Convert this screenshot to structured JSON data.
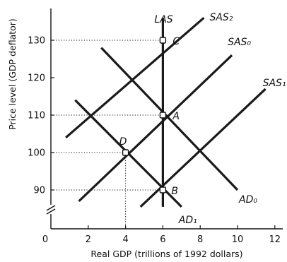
{
  "chart_data": {
    "type": "line",
    "xlabel": "Real GDP (trillions of 1992 dollars)",
    "ylabel": "Price level (GDP deflator)",
    "xlim": [
      0,
      12.5
    ],
    "ylim": [
      85,
      137
    ],
    "x_ticks": [
      0,
      2,
      4,
      6,
      8,
      10,
      12
    ],
    "y_ticks": [
      90,
      100,
      110,
      120,
      130
    ],
    "y_axis_break": true,
    "grid": false,
    "series": [
      {
        "name": "LAS",
        "label": "LAS",
        "type": "vertical",
        "x": 6,
        "y_range": [
          85.5,
          136
        ]
      },
      {
        "name": "SAS2",
        "label": "SAS₂",
        "points": [
          [
            0.8,
            104
          ],
          [
            8.2,
            136
          ]
        ]
      },
      {
        "name": "SAS0",
        "label": "SAS₀",
        "points": [
          [
            1.5,
            87
          ],
          [
            9.7,
            126
          ]
        ]
      },
      {
        "name": "SAS1",
        "label": "SAS₁",
        "points": [
          [
            4.8,
            85.5
          ],
          [
            11.5,
            117
          ]
        ]
      },
      {
        "name": "AD0",
        "label": "AD₀",
        "points": [
          [
            2.7,
            128
          ],
          [
            10,
            90
          ]
        ]
      },
      {
        "name": "AD1",
        "label": "AD₁",
        "points": [
          [
            1.3,
            114
          ],
          [
            7,
            85.5
          ]
        ]
      }
    ],
    "points": [
      {
        "label": "A",
        "x": 6,
        "y": 110
      },
      {
        "label": "B",
        "x": 6,
        "y": 90
      },
      {
        "label": "C",
        "x": 6,
        "y": 130
      },
      {
        "label": "D",
        "x": 4,
        "y": 100
      }
    ]
  }
}
